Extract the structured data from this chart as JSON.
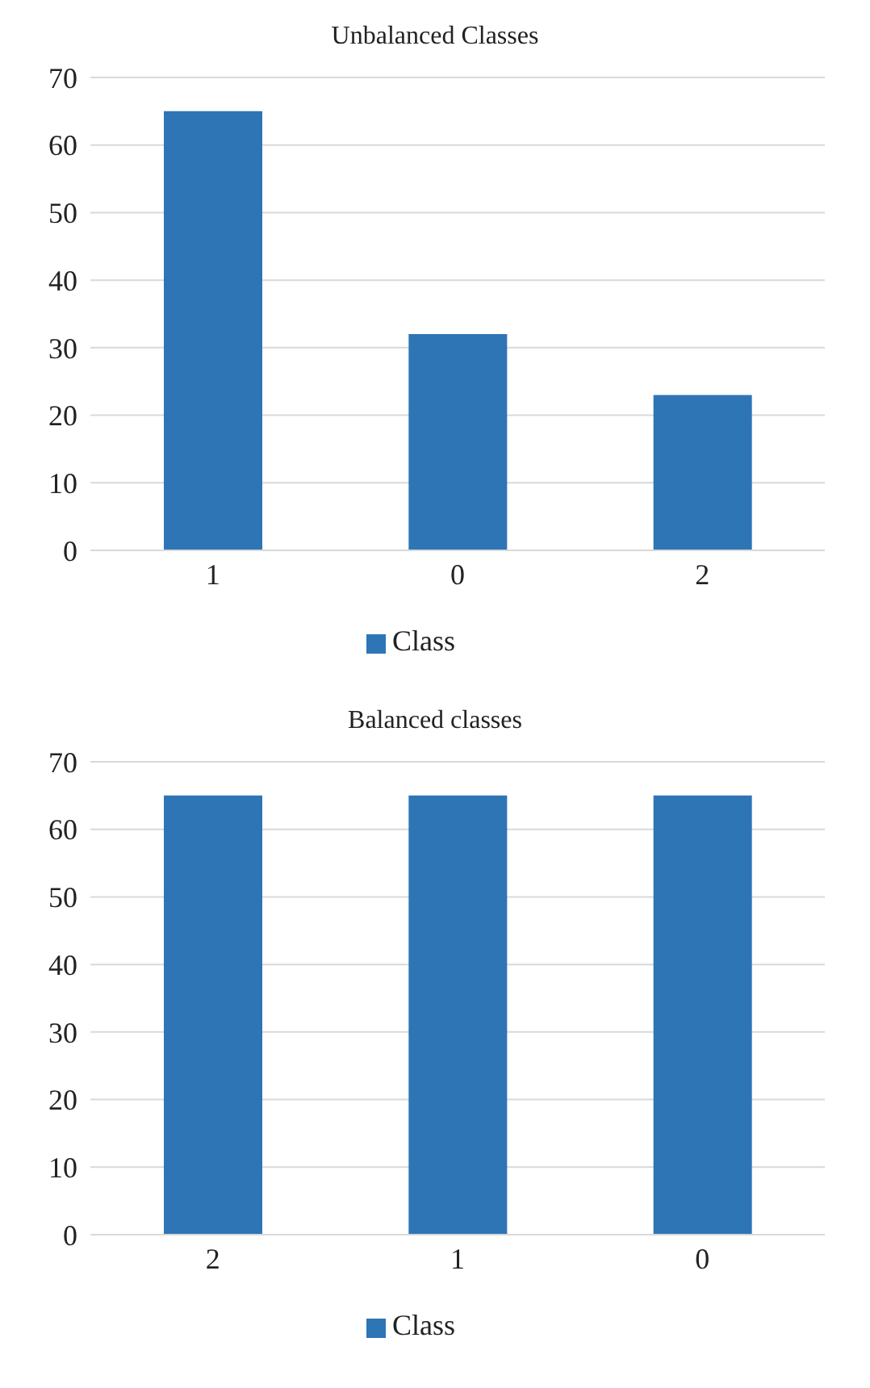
{
  "chart_data": [
    {
      "type": "bar",
      "title": "Unbalanced Classes",
      "categories": [
        "1",
        "0",
        "2"
      ],
      "series": [
        {
          "name": "Class",
          "color": "#2e75b6",
          "values": [
            65,
            32,
            23
          ]
        }
      ],
      "ylim": [
        0,
        70
      ],
      "yticks": [
        0,
        10,
        20,
        30,
        40,
        50,
        60,
        70
      ],
      "grid": "y",
      "legend": "bottom"
    },
    {
      "type": "bar",
      "title": "Balanced classes",
      "categories": [
        "2",
        "1",
        "0"
      ],
      "series": [
        {
          "name": "Class",
          "color": "#2e75b6",
          "values": [
            65,
            65,
            65
          ]
        }
      ],
      "ylim": [
        0,
        70
      ],
      "yticks": [
        0,
        10,
        20,
        30,
        40,
        50,
        60,
        70
      ],
      "grid": "y",
      "legend": "bottom"
    }
  ]
}
